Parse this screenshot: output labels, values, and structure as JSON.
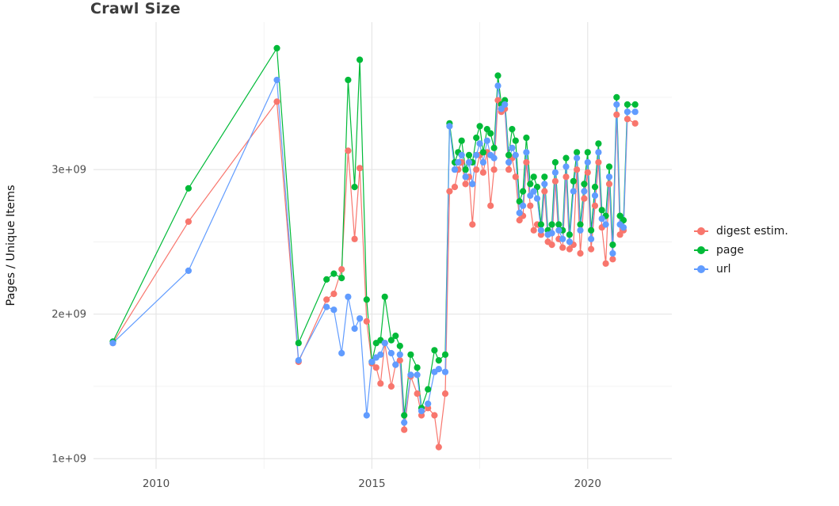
{
  "title": "Crawl Size",
  "chart_data": {
    "type": "line",
    "title": "Crawl Size",
    "xlabel": "",
    "ylabel": "Pages / Unique Items",
    "legend_position": "right",
    "grid": true,
    "grid_major_color": "#E4E4E4",
    "grid_minor_color": "#F1F1F1",
    "background_color": "#FFFFFF",
    "tick_label_color": "#4d4d4d",
    "y_unit": 1000000000,
    "xlim": [
      2008.55,
      2021.95
    ],
    "ylim_billions": [
      0.93,
      4.02
    ],
    "x_ticks": [
      {
        "value": 2010,
        "label": "2010"
      },
      {
        "value": 2015,
        "label": "2015"
      },
      {
        "value": 2020,
        "label": "2020"
      }
    ],
    "y_ticks": [
      {
        "value": 1,
        "label": "1e+09"
      },
      {
        "value": 2,
        "label": "2e+09"
      },
      {
        "value": 3,
        "label": "3e+09"
      }
    ],
    "x_minor": [
      2012.5,
      2017.5
    ],
    "y_minor": [
      1.5,
      2.5,
      3.5
    ],
    "x": [
      2009.0,
      2010.75,
      2012.8,
      2013.3,
      2013.95,
      2014.12,
      2014.3,
      2014.45,
      2014.6,
      2014.72,
      2014.88,
      2015.0,
      2015.1,
      2015.2,
      2015.3,
      2015.45,
      2015.55,
      2015.65,
      2015.75,
      2015.9,
      2016.05,
      2016.15,
      2016.3,
      2016.45,
      2016.55,
      2016.7,
      2016.8,
      2016.92,
      2017.0,
      2017.08,
      2017.17,
      2017.25,
      2017.33,
      2017.42,
      2017.5,
      2017.58,
      2017.67,
      2017.75,
      2017.83,
      2017.92,
      2018.0,
      2018.08,
      2018.17,
      2018.25,
      2018.33,
      2018.42,
      2018.5,
      2018.58,
      2018.67,
      2018.75,
      2018.83,
      2018.92,
      2019.0,
      2019.08,
      2019.17,
      2019.25,
      2019.33,
      2019.42,
      2019.5,
      2019.58,
      2019.67,
      2019.75,
      2019.83,
      2019.92,
      2020.0,
      2020.08,
      2020.17,
      2020.25,
      2020.33,
      2020.42,
      2020.5,
      2020.58,
      2020.67,
      2020.75,
      2020.83,
      2020.92,
      2021.1
    ],
    "series": [
      {
        "id": "digest",
        "name": "digest estim.",
        "color": "#F8766D",
        "values_billions": [
          1.8,
          2.64,
          3.47,
          1.67,
          2.1,
          2.14,
          2.31,
          3.13,
          2.52,
          3.01,
          1.95,
          1.66,
          1.63,
          1.52,
          1.8,
          1.5,
          1.65,
          1.68,
          1.2,
          1.57,
          1.45,
          1.3,
          1.35,
          1.3,
          1.08,
          1.45,
          2.85,
          2.88,
          3.0,
          3.05,
          2.9,
          2.95,
          2.62,
          3.0,
          3.1,
          2.98,
          3.12,
          2.75,
          3.0,
          3.48,
          3.4,
          3.42,
          3.0,
          3.08,
          2.95,
          2.65,
          2.68,
          3.05,
          2.75,
          2.58,
          2.62,
          2.55,
          2.85,
          2.5,
          2.48,
          2.92,
          2.52,
          2.46,
          2.95,
          2.45,
          2.48,
          3.0,
          2.42,
          2.8,
          2.98,
          2.45,
          2.75,
          3.05,
          2.6,
          2.35,
          2.9,
          2.38,
          3.38,
          2.55,
          2.58,
          3.35,
          3.32
        ]
      },
      {
        "id": "page",
        "name": "page",
        "color": "#00BA38",
        "values_billions": [
          1.81,
          2.87,
          3.84,
          1.8,
          2.24,
          2.28,
          2.25,
          3.62,
          2.88,
          3.76,
          2.1,
          1.67,
          1.8,
          1.82,
          2.12,
          1.82,
          1.85,
          1.78,
          1.3,
          1.72,
          1.63,
          1.35,
          1.48,
          1.75,
          1.68,
          1.72,
          3.32,
          3.05,
          3.12,
          3.2,
          3.0,
          3.1,
          3.05,
          3.22,
          3.3,
          3.12,
          3.28,
          3.25,
          3.15,
          3.65,
          3.45,
          3.48,
          3.1,
          3.28,
          3.2,
          2.78,
          2.85,
          3.22,
          2.9,
          2.95,
          2.88,
          2.62,
          2.95,
          2.58,
          2.62,
          3.05,
          2.62,
          2.58,
          3.08,
          2.55,
          2.92,
          3.12,
          2.62,
          2.9,
          3.12,
          2.58,
          2.88,
          3.18,
          2.72,
          2.68,
          3.02,
          2.48,
          3.5,
          2.68,
          2.65,
          3.45,
          3.45
        ]
      },
      {
        "id": "url",
        "name": "url",
        "color": "#619CFF",
        "values_billions": [
          1.8,
          2.3,
          3.62,
          1.68,
          2.05,
          2.03,
          1.73,
          2.12,
          1.9,
          1.97,
          1.3,
          1.67,
          1.7,
          1.72,
          1.8,
          1.73,
          1.65,
          1.72,
          1.25,
          1.58,
          1.58,
          1.33,
          1.38,
          1.6,
          1.62,
          1.6,
          3.3,
          3.0,
          3.05,
          3.1,
          2.95,
          3.05,
          2.9,
          3.1,
          3.18,
          3.05,
          3.2,
          3.1,
          3.08,
          3.58,
          3.42,
          3.45,
          3.05,
          3.15,
          3.1,
          2.7,
          2.75,
          3.12,
          2.82,
          2.85,
          2.8,
          2.58,
          2.9,
          2.55,
          2.56,
          2.98,
          2.58,
          2.52,
          3.02,
          2.5,
          2.85,
          3.08,
          2.58,
          2.85,
          3.05,
          2.52,
          2.82,
          3.12,
          2.66,
          2.62,
          2.95,
          2.42,
          3.45,
          2.62,
          2.6,
          3.4,
          3.4
        ]
      }
    ]
  }
}
